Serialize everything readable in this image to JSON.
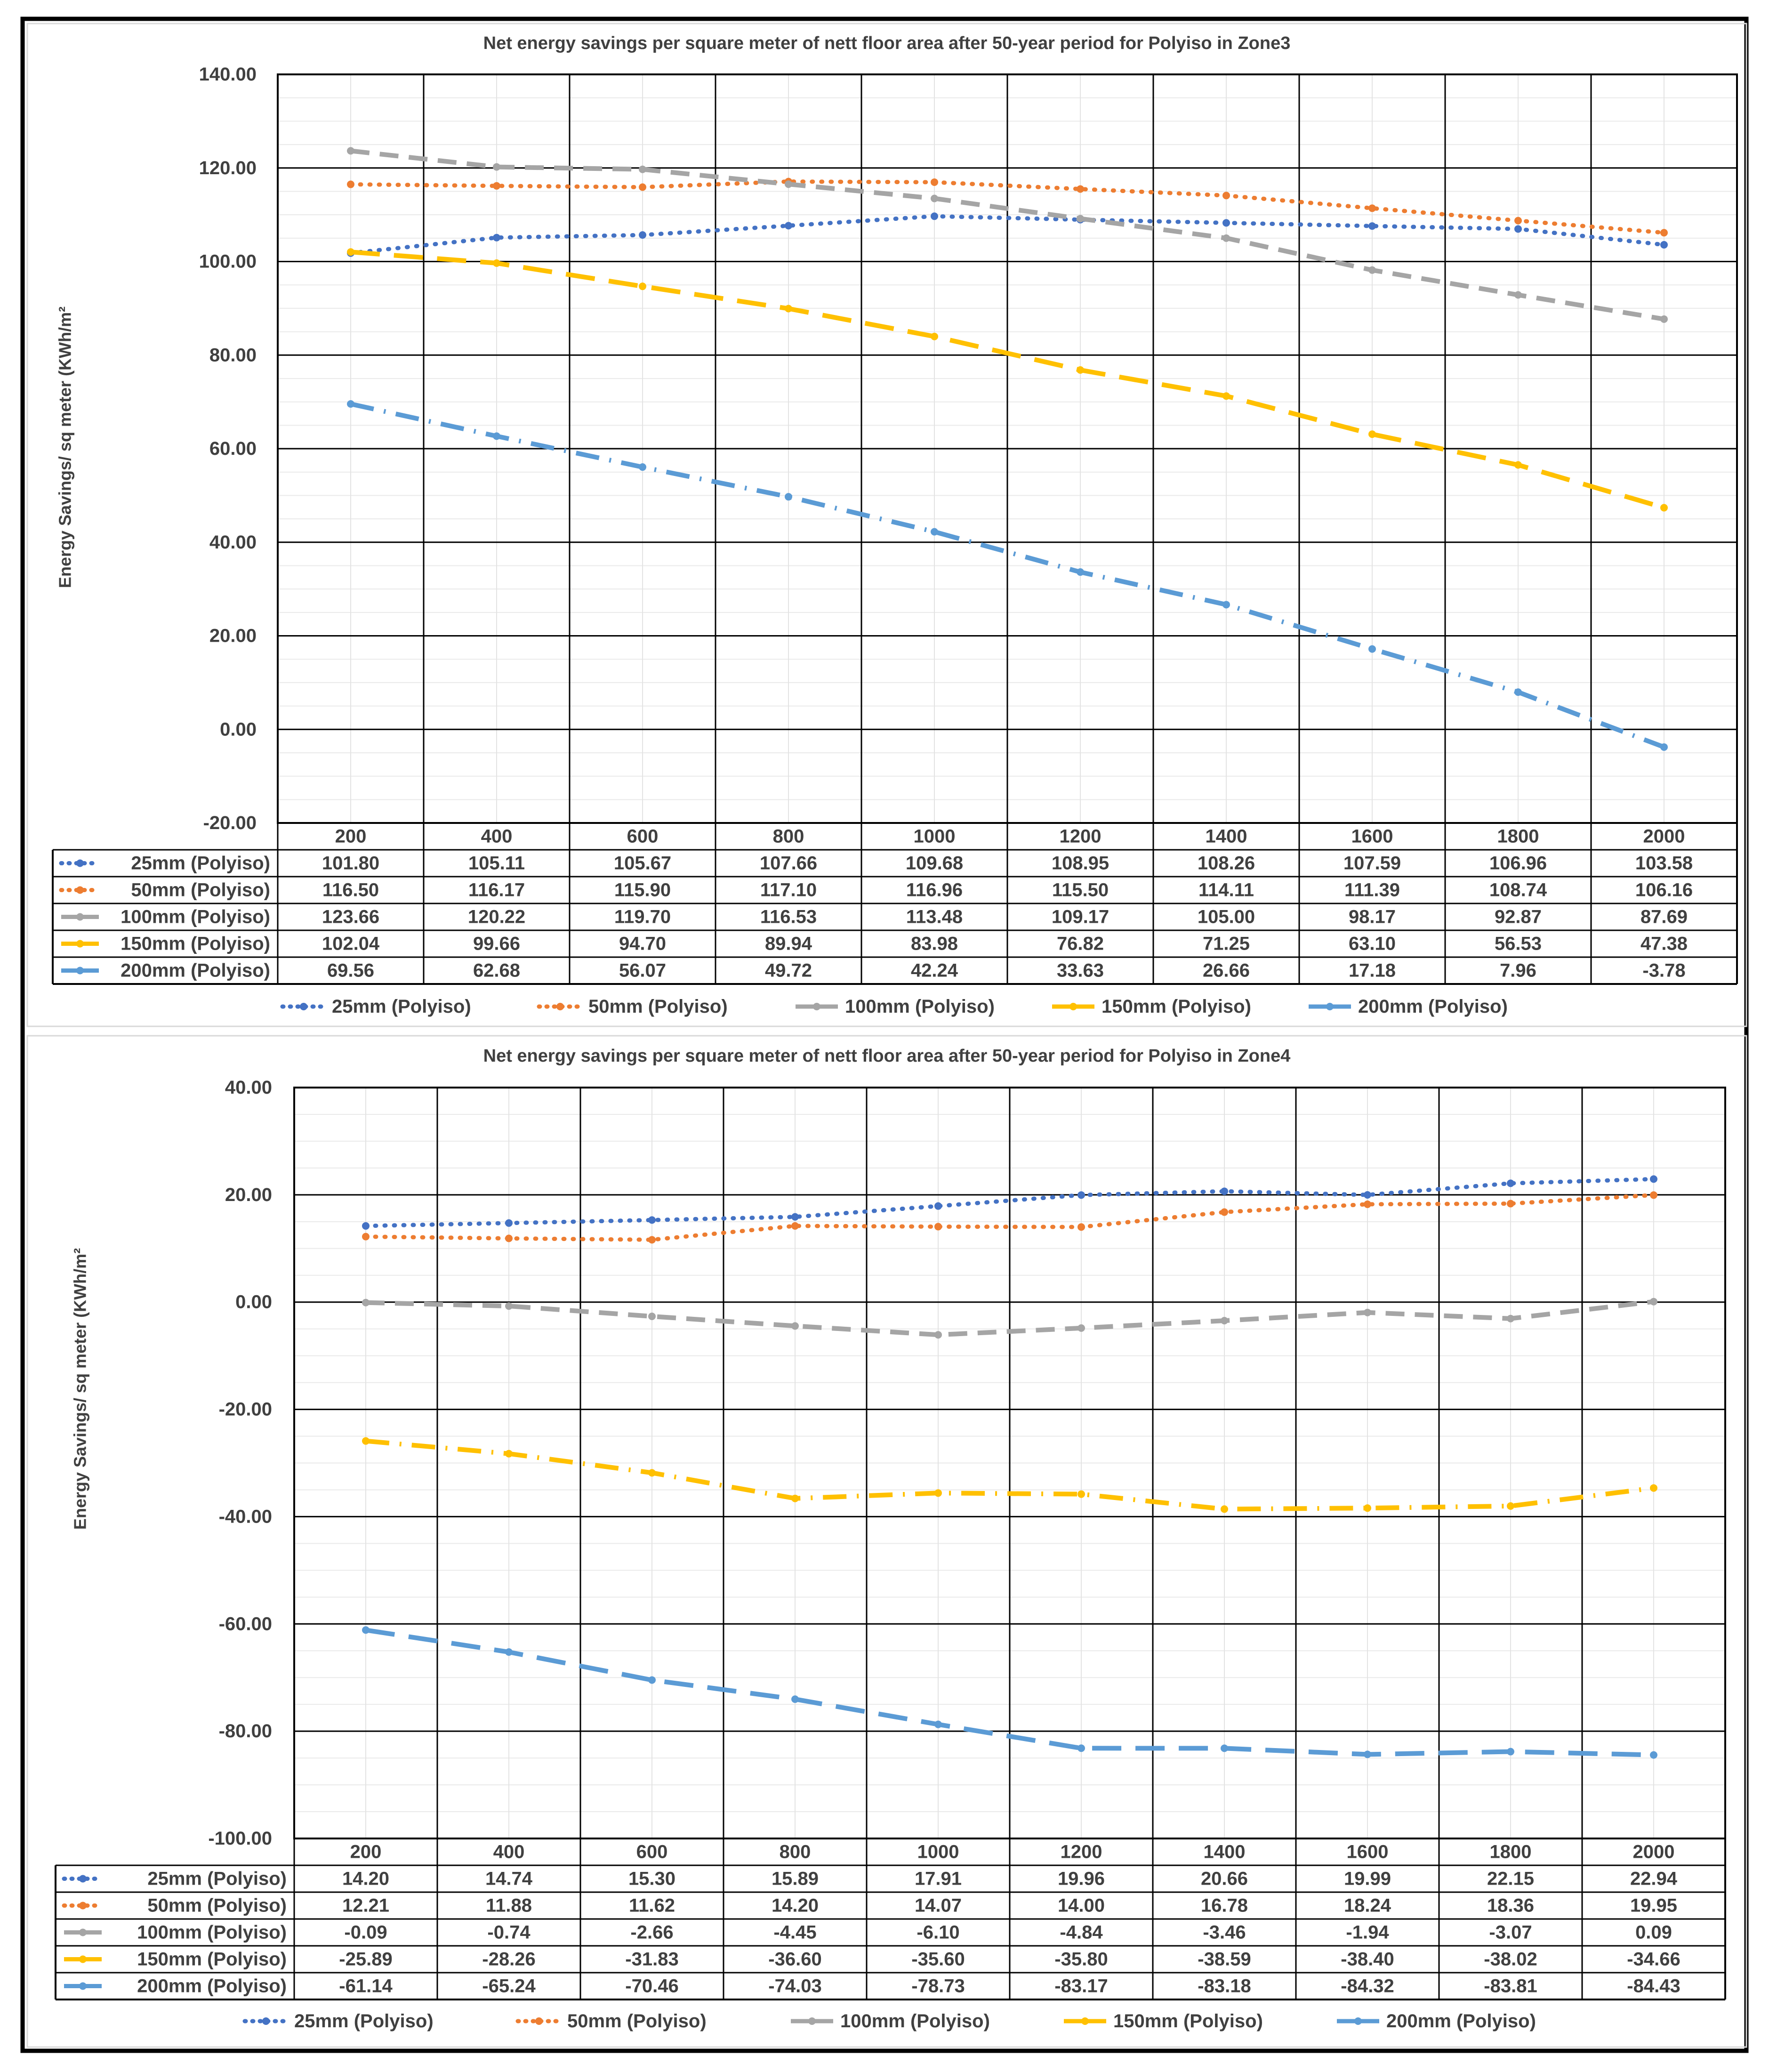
{
  "chart_data": [
    {
      "type": "line",
      "title": "Net energy savings per square meter of nett floor area after 50-year period for Polyiso in Zone3",
      "ylabel": "Energy Savings/ sq meter (KWh/m²",
      "xlabel": "",
      "ylim": [
        -20,
        140
      ],
      "ystep": 20,
      "yticks": [
        "140.00",
        "120.00",
        "100.00",
        "80.00",
        "60.00",
        "40.00",
        "20.00",
        "0.00",
        "-20.00"
      ],
      "categories": [
        "200",
        "400",
        "600",
        "800",
        "1000",
        "1200",
        "1400",
        "1600",
        "1800",
        "2000"
      ],
      "legend_position": "bottom",
      "grid": true,
      "series": [
        {
          "name": "25mm (Polyiso)",
          "color": "#4472c4",
          "style": "dot",
          "values": [
            101.8,
            105.11,
            105.67,
            107.66,
            109.68,
            108.95,
            108.26,
            107.59,
            106.96,
            103.58
          ],
          "labels": [
            "101.80",
            "105.11",
            "105.67",
            "107.66",
            "109.68",
            "108.95",
            "108.26",
            "107.59",
            "106.96",
            "103.58"
          ]
        },
        {
          "name": "50mm (Polyiso)",
          "color": "#ed7d31",
          "style": "dot",
          "values": [
            116.5,
            116.17,
            115.9,
            117.1,
            116.96,
            115.5,
            114.11,
            111.39,
            108.74,
            106.16
          ],
          "labels": [
            "116.50",
            "116.17",
            "115.90",
            "117.10",
            "116.96",
            "115.50",
            "114.11",
            "111.39",
            "108.74",
            "106.16"
          ]
        },
        {
          "name": "100mm (Polyiso)",
          "color": "#a5a5a5",
          "style": "dash",
          "values": [
            123.66,
            120.22,
            119.7,
            116.53,
            113.48,
            109.17,
            105.0,
            98.17,
            92.87,
            87.69
          ],
          "labels": [
            "123.66",
            "120.22",
            "119.70",
            "116.53",
            "113.48",
            "109.17",
            "105.00",
            "98.17",
            "92.87",
            "87.69"
          ]
        },
        {
          "name": "150mm (Polyiso)",
          "color": "#ffc000",
          "style": "longdash",
          "values": [
            102.04,
            99.66,
            94.7,
            89.94,
            83.98,
            76.82,
            71.25,
            63.1,
            56.53,
            47.38
          ],
          "labels": [
            "102.04",
            "99.66",
            "94.70",
            "89.94",
            "83.98",
            "76.82",
            "71.25",
            "63.10",
            "56.53",
            "47.38"
          ]
        },
        {
          "name": "200mm (Polyiso)",
          "color": "#5b9bd5",
          "style": "dashdot",
          "values": [
            69.56,
            62.68,
            56.07,
            49.72,
            42.24,
            33.63,
            26.66,
            17.18,
            7.96,
            -3.78
          ],
          "labels": [
            "69.56",
            "62.68",
            "56.07",
            "49.72",
            "42.24",
            "33.63",
            "26.66",
            "17.18",
            "7.96",
            "-3.78"
          ]
        }
      ]
    },
    {
      "type": "line",
      "title": "Net energy savings per square meter of nett floor area after 50-year period for Polyiso in Zone4",
      "ylabel": "Energy Savings/ sq meter (KWh/m²",
      "xlabel": "",
      "ylim": [
        -100,
        40
      ],
      "ystep": 20,
      "yticks": [
        "40.00",
        "20.00",
        "0.00",
        "-20.00",
        "-40.00",
        "-60.00",
        "-80.00",
        "-100.00"
      ],
      "categories": [
        "200",
        "400",
        "600",
        "800",
        "1000",
        "1200",
        "1400",
        "1600",
        "1800",
        "2000"
      ],
      "legend_position": "bottom",
      "grid": true,
      "series": [
        {
          "name": "25mm (Polyiso)",
          "color": "#4472c4",
          "style": "dot",
          "values": [
            14.2,
            14.74,
            15.3,
            15.89,
            17.91,
            19.96,
            20.66,
            19.99,
            22.15,
            22.94
          ],
          "labels": [
            "14.20",
            "14.74",
            "15.30",
            "15.89",
            "17.91",
            "19.96",
            "20.66",
            "19.99",
            "22.15",
            "22.94"
          ]
        },
        {
          "name": "50mm (Polyiso)",
          "color": "#ed7d31",
          "style": "dot",
          "values": [
            12.21,
            11.88,
            11.62,
            14.2,
            14.07,
            14.0,
            16.78,
            18.24,
            18.36,
            19.95
          ],
          "labels": [
            "12.21",
            "11.88",
            "11.62",
            "14.20",
            "14.07",
            "14.00",
            "16.78",
            "18.24",
            "18.36",
            "19.95"
          ]
        },
        {
          "name": "100mm (Polyiso)",
          "color": "#a5a5a5",
          "style": "dash",
          "values": [
            -0.09,
            -0.74,
            -2.66,
            -4.45,
            -6.1,
            -4.84,
            -3.46,
            -1.94,
            -3.07,
            0.09
          ],
          "labels": [
            "-0.09",
            "-0.74",
            "-2.66",
            "-4.45",
            "-6.10",
            "-4.84",
            "-3.46",
            "-1.94",
            "-3.07",
            "0.09"
          ]
        },
        {
          "name": "150mm (Polyiso)",
          "color": "#ffc000",
          "style": "dashdot",
          "values": [
            -25.89,
            -28.26,
            -31.83,
            -36.6,
            -35.6,
            -35.8,
            -38.59,
            -38.4,
            -38.02,
            -34.66
          ],
          "labels": [
            "-25.89",
            "-28.26",
            "-31.83",
            "-36.60",
            "-35.60",
            "-35.80",
            "-38.59",
            "-38.40",
            "-38.02",
            "-34.66"
          ]
        },
        {
          "name": "200mm (Polyiso)",
          "color": "#5b9bd5",
          "style": "longdash",
          "values": [
            -61.14,
            -65.24,
            -70.46,
            -74.03,
            -78.73,
            -83.17,
            -83.18,
            -84.32,
            -83.81,
            -84.43
          ],
          "labels": [
            "-61.14",
            "-65.24",
            "-70.46",
            "-74.03",
            "-78.73",
            "-83.17",
            "-83.18",
            "-84.32",
            "-83.81",
            "-84.43"
          ]
        }
      ]
    }
  ]
}
